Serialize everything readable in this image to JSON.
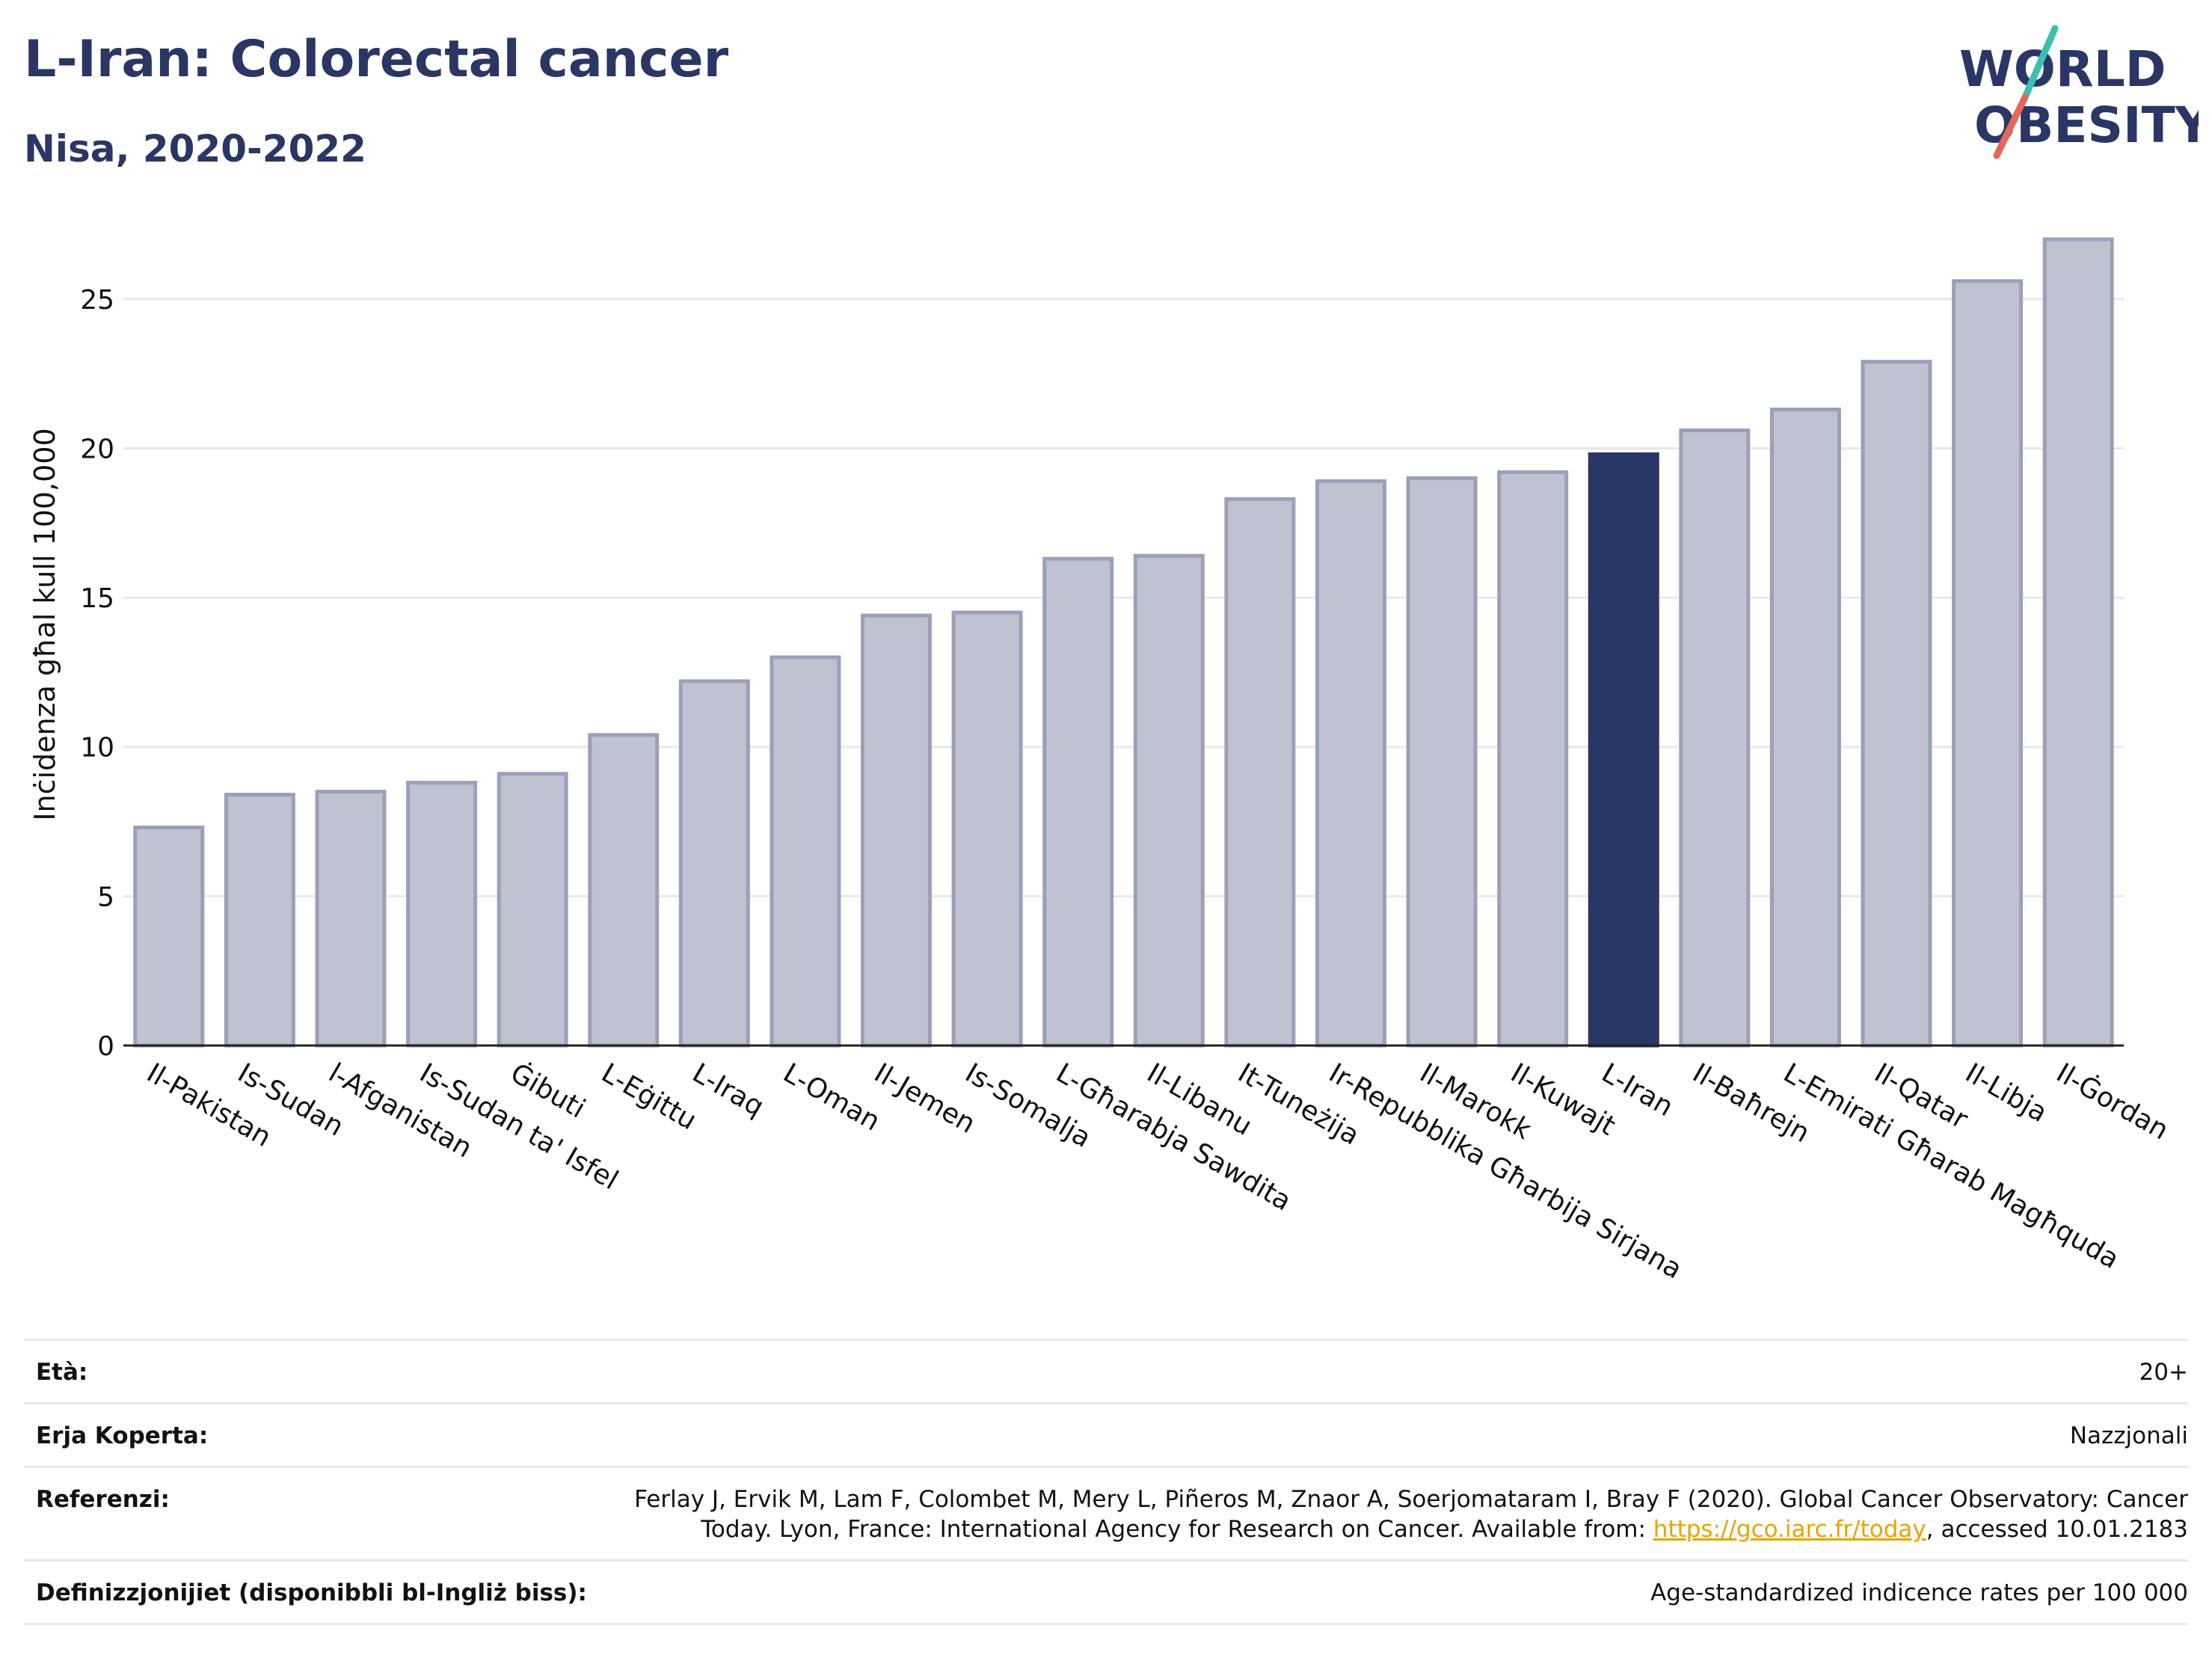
{
  "header": {
    "title": "L-Iran: Colorectal cancer",
    "subtitle": "Nisa, 2020-2022"
  },
  "logo": {
    "line1": "WORLD",
    "line2": "OBESITY"
  },
  "chart_data": {
    "type": "bar",
    "ylabel": "Inċidenza għal kull 100,000",
    "ylim": [
      0,
      27.5
    ],
    "yticks": [
      0,
      5,
      10,
      15,
      20,
      25
    ],
    "grid": true,
    "highlight": "L-Iran",
    "colors": {
      "bar": "#bfc3d0",
      "bar_edge": "#9ba0b8",
      "highlight": "#2a3663",
      "grid": "#e6e8f0"
    },
    "categories": [
      "Il-Pakistan",
      "Is-Sudan",
      "l-Afganistan",
      "Is-Sudan ta' Isfel",
      "Ġibuti",
      "L-Eġittu",
      "L-Iraq",
      "L-Oman",
      "Il-Jemen",
      "Is-Somalja",
      "L-Għarabja Sawdita",
      "Il-Libanu",
      "It-Tuneżija",
      "Ir-Repubblika Għarbija Sirjana",
      "Il-Marokk",
      "Il-Kuwajt",
      "L-Iran",
      "Il-Baħrejn",
      "L-Emirati Għarab Magħquda",
      "Il-Qatar",
      "Il-Libja",
      "Il-Ġordan"
    ],
    "values": [
      7.3,
      8.4,
      8.5,
      8.8,
      9.1,
      10.4,
      12.2,
      13.0,
      14.4,
      14.5,
      16.3,
      16.4,
      18.3,
      18.9,
      19.0,
      19.2,
      19.8,
      20.6,
      21.3,
      22.9,
      25.6,
      27.0
    ]
  },
  "meta": {
    "age_label": "Età:",
    "age_value": "20+",
    "area_label": "Erja Koperta:",
    "area_value": "Nazzjonali",
    "ref_label": "Referenzi:",
    "ref_text": "Ferlay J, Ervik M, Lam F, Colombet M, Mery L, Piñeros M, Znaor A, Soerjomataram I, Bray F (2020). Global Cancer Observatory: Cancer Today. Lyon, France: International Agency for Research on Cancer. Available from: ",
    "ref_link": "https://gco.iarc.fr/today",
    "ref_suffix": ", accessed 10.01.2183",
    "def_label": "Definizzjonijiet (disponibbli bl-Ingliż biss):",
    "def_value": "Age-standardized indicence rates per 100 000"
  }
}
